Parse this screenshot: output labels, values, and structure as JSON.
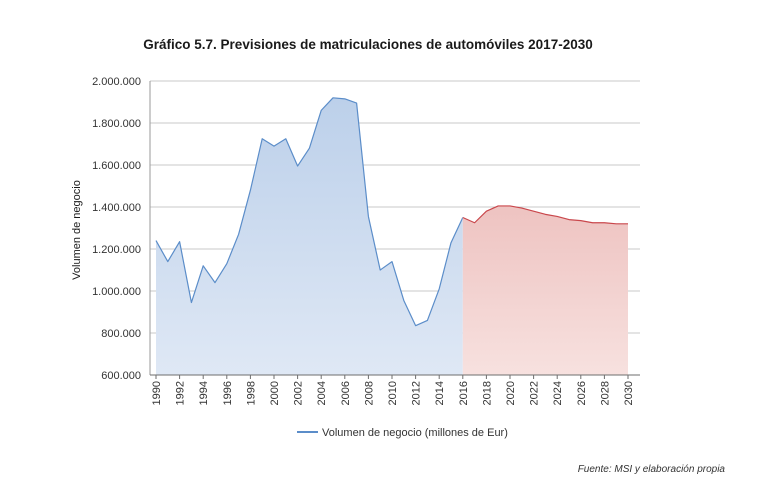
{
  "chart_data": {
    "type": "area",
    "title": "Gráfico 5.7. Previsiones de matriculaciones de automóviles 2017-2030",
    "ylabel": "Volumen de negocio",
    "xlabel": "",
    "ylim": [
      600000,
      2000000
    ],
    "yticks": [
      600000,
      800000,
      1000000,
      1200000,
      1400000,
      1600000,
      1800000,
      2000000
    ],
    "ytick_labels": [
      "600.000",
      "800.000",
      "1.000.000",
      "1.200.000",
      "1.400.000",
      "1.600.000",
      "1.800.000",
      "2.000.000"
    ],
    "xlim": [
      1990,
      2030
    ],
    "xticks": [
      1990,
      1992,
      1994,
      1996,
      1998,
      2000,
      2002,
      2004,
      2006,
      2008,
      2010,
      2012,
      2014,
      2016,
      2018,
      2020,
      2022,
      2024,
      2026,
      2028,
      2030
    ],
    "grid": "horizontal",
    "legend_position": "bottom",
    "series": [
      {
        "name": "Volumen de negocio (millones de Eur)",
        "color": "#5b8dc9",
        "fill_top": "#bcd0ea",
        "fill_bottom": "#dfe8f5",
        "x": [
          1990,
          1991,
          1992,
          1993,
          1994,
          1995,
          1996,
          1997,
          1998,
          1999,
          2000,
          2001,
          2002,
          2003,
          2004,
          2005,
          2006,
          2007,
          2008,
          2009,
          2010,
          2011,
          2012,
          2013,
          2014,
          2015,
          2016
        ],
        "values": [
          1240000,
          1140000,
          1235000,
          945000,
          1120000,
          1040000,
          1130000,
          1270000,
          1480000,
          1725000,
          1690000,
          1725000,
          1595000,
          1680000,
          1860000,
          1920000,
          1915000,
          1895000,
          1355000,
          1100000,
          1140000,
          955000,
          835000,
          860000,
          1010000,
          1230000,
          1350000
        ]
      },
      {
        "name": "",
        "color": "#c9474c",
        "fill_top": "#eec3c1",
        "fill_bottom": "#f7e1df",
        "x": [
          2016,
          2017,
          2018,
          2019,
          2020,
          2021,
          2022,
          2023,
          2024,
          2025,
          2026,
          2027,
          2028,
          2029,
          2030
        ],
        "values": [
          1350000,
          1325000,
          1380000,
          1405000,
          1405000,
          1395000,
          1380000,
          1365000,
          1355000,
          1340000,
          1335000,
          1325000,
          1325000,
          1320000,
          1320000
        ]
      }
    ]
  },
  "legend": {
    "label": "Volumen de negocio (millones de Eur)"
  },
  "source_note": "Fuente: MSI y elaboración propia"
}
